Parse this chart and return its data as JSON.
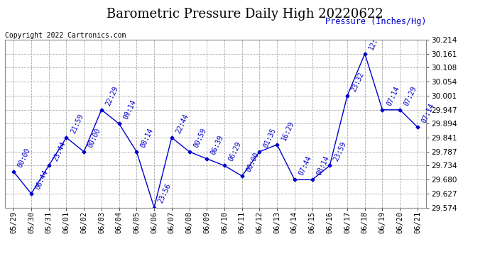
{
  "title": "Barometric Pressure Daily High 20220622",
  "copyright": "Copyright 2022 Cartronics.com",
  "ylabel": "Pressure (Inches/Hg)",
  "ylim": [
    29.574,
    30.214
  ],
  "yticks": [
    29.574,
    29.627,
    29.68,
    29.734,
    29.787,
    29.841,
    29.894,
    29.947,
    30.001,
    30.054,
    30.108,
    30.161,
    30.214
  ],
  "dates": [
    "05/29",
    "05/30",
    "05/31",
    "06/01",
    "06/02",
    "06/03",
    "06/04",
    "06/05",
    "06/06",
    "06/07",
    "06/08",
    "06/09",
    "06/10",
    "06/11",
    "06/12",
    "06/13",
    "06/14",
    "06/15",
    "06/16",
    "06/17",
    "06/18",
    "06/19",
    "06/20",
    "06/21"
  ],
  "values": [
    29.71,
    29.627,
    29.734,
    29.841,
    29.787,
    29.947,
    29.894,
    29.787,
    29.574,
    29.841,
    29.787,
    29.76,
    29.734,
    29.694,
    29.787,
    29.814,
    29.68,
    29.68,
    29.734,
    30.001,
    30.161,
    29.947,
    29.947,
    29.881
  ],
  "times": [
    "00:00",
    "06:44",
    "23:44",
    "21:59",
    "00:00",
    "22:29",
    "09:14",
    "08:14",
    "23:56",
    "22:44",
    "00:59",
    "06:39",
    "06:29",
    "00:00",
    "01:35",
    "16:29",
    "07:44",
    "08:14",
    "23:59",
    "23:32",
    "12:",
    "07:14",
    "07:29",
    "07:14"
  ],
  "line_color": "#0000cc",
  "marker": "D",
  "marker_size": 2.5,
  "bg_color": "#ffffff",
  "grid_color": "#aaaaaa",
  "title_fontsize": 13,
  "label_fontsize": 8.5,
  "tick_fontsize": 7.5,
  "annot_fontsize": 7.0,
  "annot_rotation": 65
}
